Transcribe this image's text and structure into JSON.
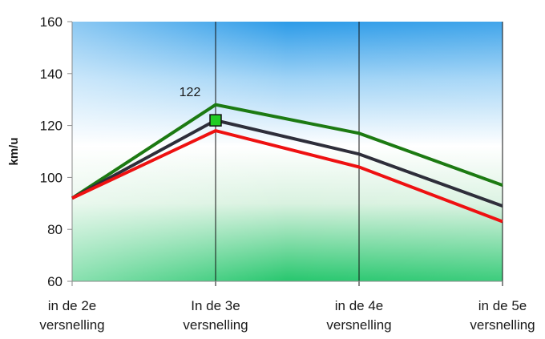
{
  "chart_data": {
    "type": "line",
    "title": "",
    "xlabel": "",
    "ylabel": "km/u",
    "ylim": [
      60,
      160
    ],
    "yticks": [
      60,
      80,
      100,
      120,
      140,
      160
    ],
    "categories": [
      [
        "in de 2e",
        "versnelling"
      ],
      [
        "In de 3e",
        "versnelling"
      ],
      [
        "in de 4e",
        "versnelling"
      ],
      [
        "in de 5e",
        "versnelling"
      ]
    ],
    "series": [
      {
        "color": "#1c7a12",
        "values": [
          92,
          128,
          117,
          97
        ]
      },
      {
        "color": "#2e2e3a",
        "values": [
          92,
          122,
          109,
          89
        ]
      },
      {
        "color": "#ee1111",
        "values": [
          92,
          118,
          104,
          83
        ]
      }
    ],
    "highlight": {
      "series_index": 1,
      "point_index": 1,
      "label": "122",
      "color": "#22cc22"
    },
    "grid": {
      "vertical": true,
      "horizontal": false
    },
    "background": "gradient blue (top) to white to green (bottom)"
  }
}
